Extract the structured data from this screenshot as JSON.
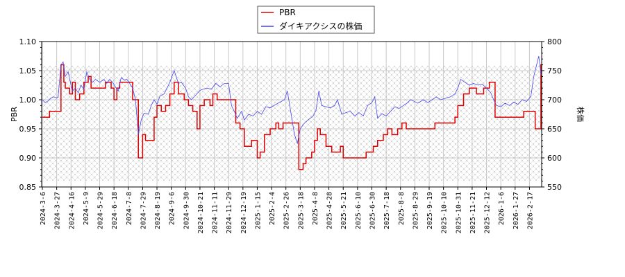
{
  "chart_data": {
    "type": "line",
    "title": "",
    "xlabel": "",
    "ylabel_left": "PBR",
    "ylabel_right": "株価",
    "ylim_left": [
      0.85,
      1.1
    ],
    "ylim_right": [
      550,
      800
    ],
    "yticks_left": [
      "0.85",
      "0.90",
      "0.95",
      "1.00",
      "1.05",
      "1.10"
    ],
    "yticks_right": [
      "550",
      "600",
      "650",
      "700",
      "750",
      "800"
    ],
    "grid": true,
    "legend_position": "top-center",
    "hatched_band": {
      "pbr_range": [
        0.86,
        1.058
      ]
    },
    "x_tick_labels": [
      "2024-3-6",
      "2024-3-27",
      "2024-4-16",
      "2024-5-9",
      "2024-5-29",
      "2024-6-18",
      "2024-7-8",
      "2024-7-29",
      "2024-8-19",
      "2024-9-6",
      "2024-9-30",
      "2024-10-21",
      "2024-11-11",
      "2024-11-29",
      "2024-12-19",
      "2025-1-15",
      "2025-2-4",
      "2025-2-26",
      "2025-3-18",
      "2025-4-8",
      "2025-4-28",
      "2025-5-21",
      "2025-6-10",
      "2025-6-30",
      "2025-7-18",
      "2025-8-8",
      "2025-8-29",
      "2025-9-19",
      "2025-10-10",
      "2025-10-31",
      "2025-11-21",
      "2025-12-12",
      "2026-1-6",
      "2026-1-27",
      "2026-2-17"
    ],
    "series": [
      {
        "name": "PBR",
        "color": "#dd0000",
        "axis": "left",
        "step": true,
        "points": [
          [
            0,
            0.97
          ],
          [
            0.3,
            0.97
          ],
          [
            0.5,
            0.98
          ],
          [
            1.2,
            0.98
          ],
          [
            1.3,
            1.06
          ],
          [
            1.5,
            1.03
          ],
          [
            1.6,
            1.02
          ],
          [
            1.9,
            1.01
          ],
          [
            2.1,
            1.03
          ],
          [
            2.3,
            1.0
          ],
          [
            2.6,
            1.01
          ],
          [
            2.9,
            1.03
          ],
          [
            3.2,
            1.04
          ],
          [
            3.4,
            1.02
          ],
          [
            4.1,
            1.02
          ],
          [
            4.4,
            1.03
          ],
          [
            4.8,
            1.02
          ],
          [
            5.0,
            1.0
          ],
          [
            5.2,
            1.02
          ],
          [
            5.4,
            1.03
          ],
          [
            6.0,
            1.03
          ],
          [
            6.3,
            1.0
          ],
          [
            6.7,
            0.9
          ],
          [
            7.0,
            0.94
          ],
          [
            7.2,
            0.93
          ],
          [
            7.6,
            0.93
          ],
          [
            7.8,
            0.97
          ],
          [
            8.0,
            0.99
          ],
          [
            8.3,
            0.98
          ],
          [
            8.6,
            0.99
          ],
          [
            8.9,
            1.01
          ],
          [
            9.2,
            1.03
          ],
          [
            9.5,
            1.01
          ],
          [
            9.9,
            1.0
          ],
          [
            10.2,
            0.99
          ],
          [
            10.5,
            0.98
          ],
          [
            10.8,
            0.95
          ],
          [
            11.0,
            0.99
          ],
          [
            11.3,
            1.0
          ],
          [
            11.7,
            0.99
          ],
          [
            11.9,
            1.01
          ],
          [
            12.2,
            1.0
          ],
          [
            13.2,
            1.0
          ],
          [
            13.5,
            0.96
          ],
          [
            13.8,
            0.95
          ],
          [
            14.1,
            0.92
          ],
          [
            14.6,
            0.93
          ],
          [
            15.0,
            0.9
          ],
          [
            15.2,
            0.91
          ],
          [
            15.5,
            0.94
          ],
          [
            15.9,
            0.95
          ],
          [
            16.3,
            0.96
          ],
          [
            16.5,
            0.95
          ],
          [
            16.8,
            0.96
          ],
          [
            17.7,
            0.96
          ],
          [
            17.9,
            0.88
          ],
          [
            18.2,
            0.89
          ],
          [
            18.4,
            0.9
          ],
          [
            18.8,
            0.91
          ],
          [
            19.0,
            0.93
          ],
          [
            19.2,
            0.95
          ],
          [
            19.4,
            0.94
          ],
          [
            19.8,
            0.92
          ],
          [
            20.2,
            0.91
          ],
          [
            20.8,
            0.92
          ],
          [
            21.0,
            0.9
          ],
          [
            22.3,
            0.9
          ],
          [
            22.6,
            0.91
          ],
          [
            23.1,
            0.92
          ],
          [
            23.4,
            0.93
          ],
          [
            23.8,
            0.94
          ],
          [
            24.1,
            0.95
          ],
          [
            24.4,
            0.94
          ],
          [
            24.8,
            0.95
          ],
          [
            25.1,
            0.96
          ],
          [
            25.4,
            0.95
          ],
          [
            27.0,
            0.95
          ],
          [
            27.4,
            0.96
          ],
          [
            28.5,
            0.96
          ],
          [
            28.8,
            0.97
          ],
          [
            29.0,
            0.99
          ],
          [
            29.4,
            1.01
          ],
          [
            29.8,
            1.02
          ],
          [
            30.3,
            1.01
          ],
          [
            30.8,
            1.02
          ],
          [
            31.2,
            1.03
          ],
          [
            31.6,
            0.97
          ],
          [
            32.2,
            0.97
          ],
          [
            33.2,
            0.97
          ],
          [
            33.6,
            0.98
          ],
          [
            34.2,
            0.98
          ],
          [
            34.4,
            0.95
          ],
          [
            34.6,
            0.95
          ],
          [
            34.8,
            1.06
          ],
          [
            35.0,
            1.06
          ],
          [
            35.1,
            1.03
          ]
        ]
      },
      {
        "name": "ダイキアクシスの株価",
        "color": "#4444ee",
        "axis": "right",
        "step": false,
        "points": [
          [
            0,
            700
          ],
          [
            0.2,
            695
          ],
          [
            0.4,
            698
          ],
          [
            0.6,
            703
          ],
          [
            0.8,
            705
          ],
          [
            1.0,
            703
          ],
          [
            1.1,
            705
          ],
          [
            1.3,
            760
          ],
          [
            1.45,
            765
          ],
          [
            1.6,
            740
          ],
          [
            1.8,
            748
          ],
          [
            2.0,
            725
          ],
          [
            2.1,
            715
          ],
          [
            2.3,
            720
          ],
          [
            2.5,
            712
          ],
          [
            2.7,
            725
          ],
          [
            2.9,
            718
          ],
          [
            3.1,
            748
          ],
          [
            3.3,
            735
          ],
          [
            3.5,
            730
          ],
          [
            3.7,
            735
          ],
          [
            4.0,
            730
          ],
          [
            4.3,
            735
          ],
          [
            4.5,
            728
          ],
          [
            4.7,
            735
          ],
          [
            4.9,
            730
          ],
          [
            5.1,
            722
          ],
          [
            5.3,
            715
          ],
          [
            5.5,
            738
          ],
          [
            5.7,
            734
          ],
          [
            5.9,
            735
          ],
          [
            6.1,
            728
          ],
          [
            6.3,
            720
          ],
          [
            6.5,
            700
          ],
          [
            6.7,
            640
          ],
          [
            6.9,
            665
          ],
          [
            7.1,
            677
          ],
          [
            7.4,
            675
          ],
          [
            7.6,
            690
          ],
          [
            7.8,
            700
          ],
          [
            8.0,
            692
          ],
          [
            8.2,
            706
          ],
          [
            8.5,
            710
          ],
          [
            8.7,
            720
          ],
          [
            8.9,
            730
          ],
          [
            9.2,
            750
          ],
          [
            9.5,
            728
          ],
          [
            9.7,
            730
          ],
          [
            10.0,
            720
          ],
          [
            10.2,
            705
          ],
          [
            10.4,
            700
          ],
          [
            10.7,
            708
          ],
          [
            11.0,
            716
          ],
          [
            11.2,
            718
          ],
          [
            11.5,
            720
          ],
          [
            11.8,
            718
          ],
          [
            12.1,
            728
          ],
          [
            12.4,
            722
          ],
          [
            12.7,
            728
          ],
          [
            13.0,
            728
          ],
          [
            13.2,
            690
          ],
          [
            13.4,
            680
          ],
          [
            13.6,
            668
          ],
          [
            13.9,
            680
          ],
          [
            14.1,
            665
          ],
          [
            14.4,
            675
          ],
          [
            14.7,
            672
          ],
          [
            15.0,
            680
          ],
          [
            15.3,
            675
          ],
          [
            15.6,
            688
          ],
          [
            15.9,
            686
          ],
          [
            16.3,
            692
          ],
          [
            16.6,
            696
          ],
          [
            16.9,
            700
          ],
          [
            17.1,
            715
          ],
          [
            17.3,
            685
          ],
          [
            17.6,
            640
          ],
          [
            17.8,
            625
          ],
          [
            18.0,
            650
          ],
          [
            18.3,
            660
          ],
          [
            18.6,
            666
          ],
          [
            18.9,
            672
          ],
          [
            19.1,
            682
          ],
          [
            19.3,
            715
          ],
          [
            19.5,
            690
          ],
          [
            19.8,
            688
          ],
          [
            20.1,
            686
          ],
          [
            20.4,
            690
          ],
          [
            20.6,
            700
          ],
          [
            20.9,
            675
          ],
          [
            21.2,
            678
          ],
          [
            21.5,
            680
          ],
          [
            21.8,
            672
          ],
          [
            22.1,
            678
          ],
          [
            22.4,
            672
          ],
          [
            22.7,
            690
          ],
          [
            23.0,
            695
          ],
          [
            23.2,
            705
          ],
          [
            23.4,
            668
          ],
          [
            23.7,
            676
          ],
          [
            24.0,
            672
          ],
          [
            24.3,
            680
          ],
          [
            24.6,
            688
          ],
          [
            24.9,
            685
          ],
          [
            25.2,
            690
          ],
          [
            25.5,
            695
          ],
          [
            25.7,
            700
          ],
          [
            25.9,
            698
          ],
          [
            26.2,
            694
          ],
          [
            26.6,
            700
          ],
          [
            26.9,
            695
          ],
          [
            27.2,
            700
          ],
          [
            27.5,
            705
          ],
          [
            27.8,
            700
          ],
          [
            28.2,
            703
          ],
          [
            28.5,
            705
          ],
          [
            28.8,
            710
          ],
          [
            29.0,
            720
          ],
          [
            29.2,
            735
          ],
          [
            29.5,
            730
          ],
          [
            29.8,
            725
          ],
          [
            30.1,
            728
          ],
          [
            30.4,
            725
          ],
          [
            30.7,
            727
          ],
          [
            31.0,
            720
          ],
          [
            31.3,
            712
          ],
          [
            31.5,
            700
          ],
          [
            31.7,
            690
          ],
          [
            32.0,
            688
          ],
          [
            32.3,
            694
          ],
          [
            32.6,
            690
          ],
          [
            32.9,
            696
          ],
          [
            33.2,
            692
          ],
          [
            33.5,
            700
          ],
          [
            33.8,
            697
          ],
          [
            34.1,
            706
          ],
          [
            34.3,
            740
          ],
          [
            34.5,
            760
          ],
          [
            34.65,
            775
          ],
          [
            34.8,
            745
          ],
          [
            35.0,
            730
          ],
          [
            35.1,
            720
          ]
        ]
      }
    ]
  },
  "legend": {
    "items": [
      {
        "label": "PBR",
        "color": "#dd0000"
      },
      {
        "label": "ダイキアクシスの株価",
        "color": "#4444ee"
      }
    ]
  }
}
